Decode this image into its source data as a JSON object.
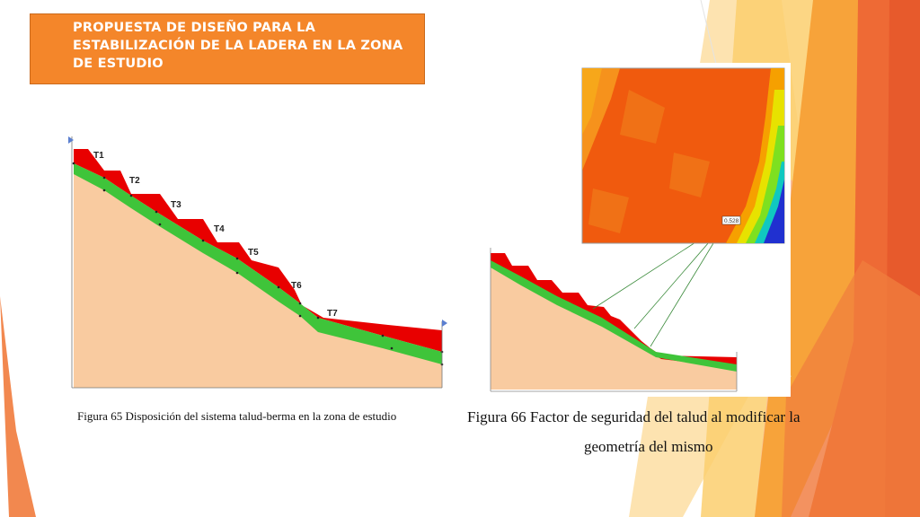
{
  "slide": {
    "title": "PROPUESTA DE DISEÑO PARA LA ESTABILIZACIÓN DE LA LADERA EN LA ZONA DE ESTUDIO"
  },
  "figure65": {
    "caption": "Figura 65  Disposición del sistema talud-berma en la zona de estudio",
    "terraces": [
      "T1",
      "T2",
      "T3",
      "T4",
      "T5",
      "T6",
      "T7"
    ]
  },
  "figure66": {
    "caption_line1": "Figura 66  Factor de seguridad del talud al modificar la",
    "caption_line2": "geometría del mismo",
    "safety_factor_label": "0.528"
  },
  "colors": {
    "title_box": "#f4862a",
    "soil": "#f9cba0",
    "cut_zone": "#e80000",
    "berm_layer": "#3fc43a",
    "contour_main": "#f05a0e"
  }
}
